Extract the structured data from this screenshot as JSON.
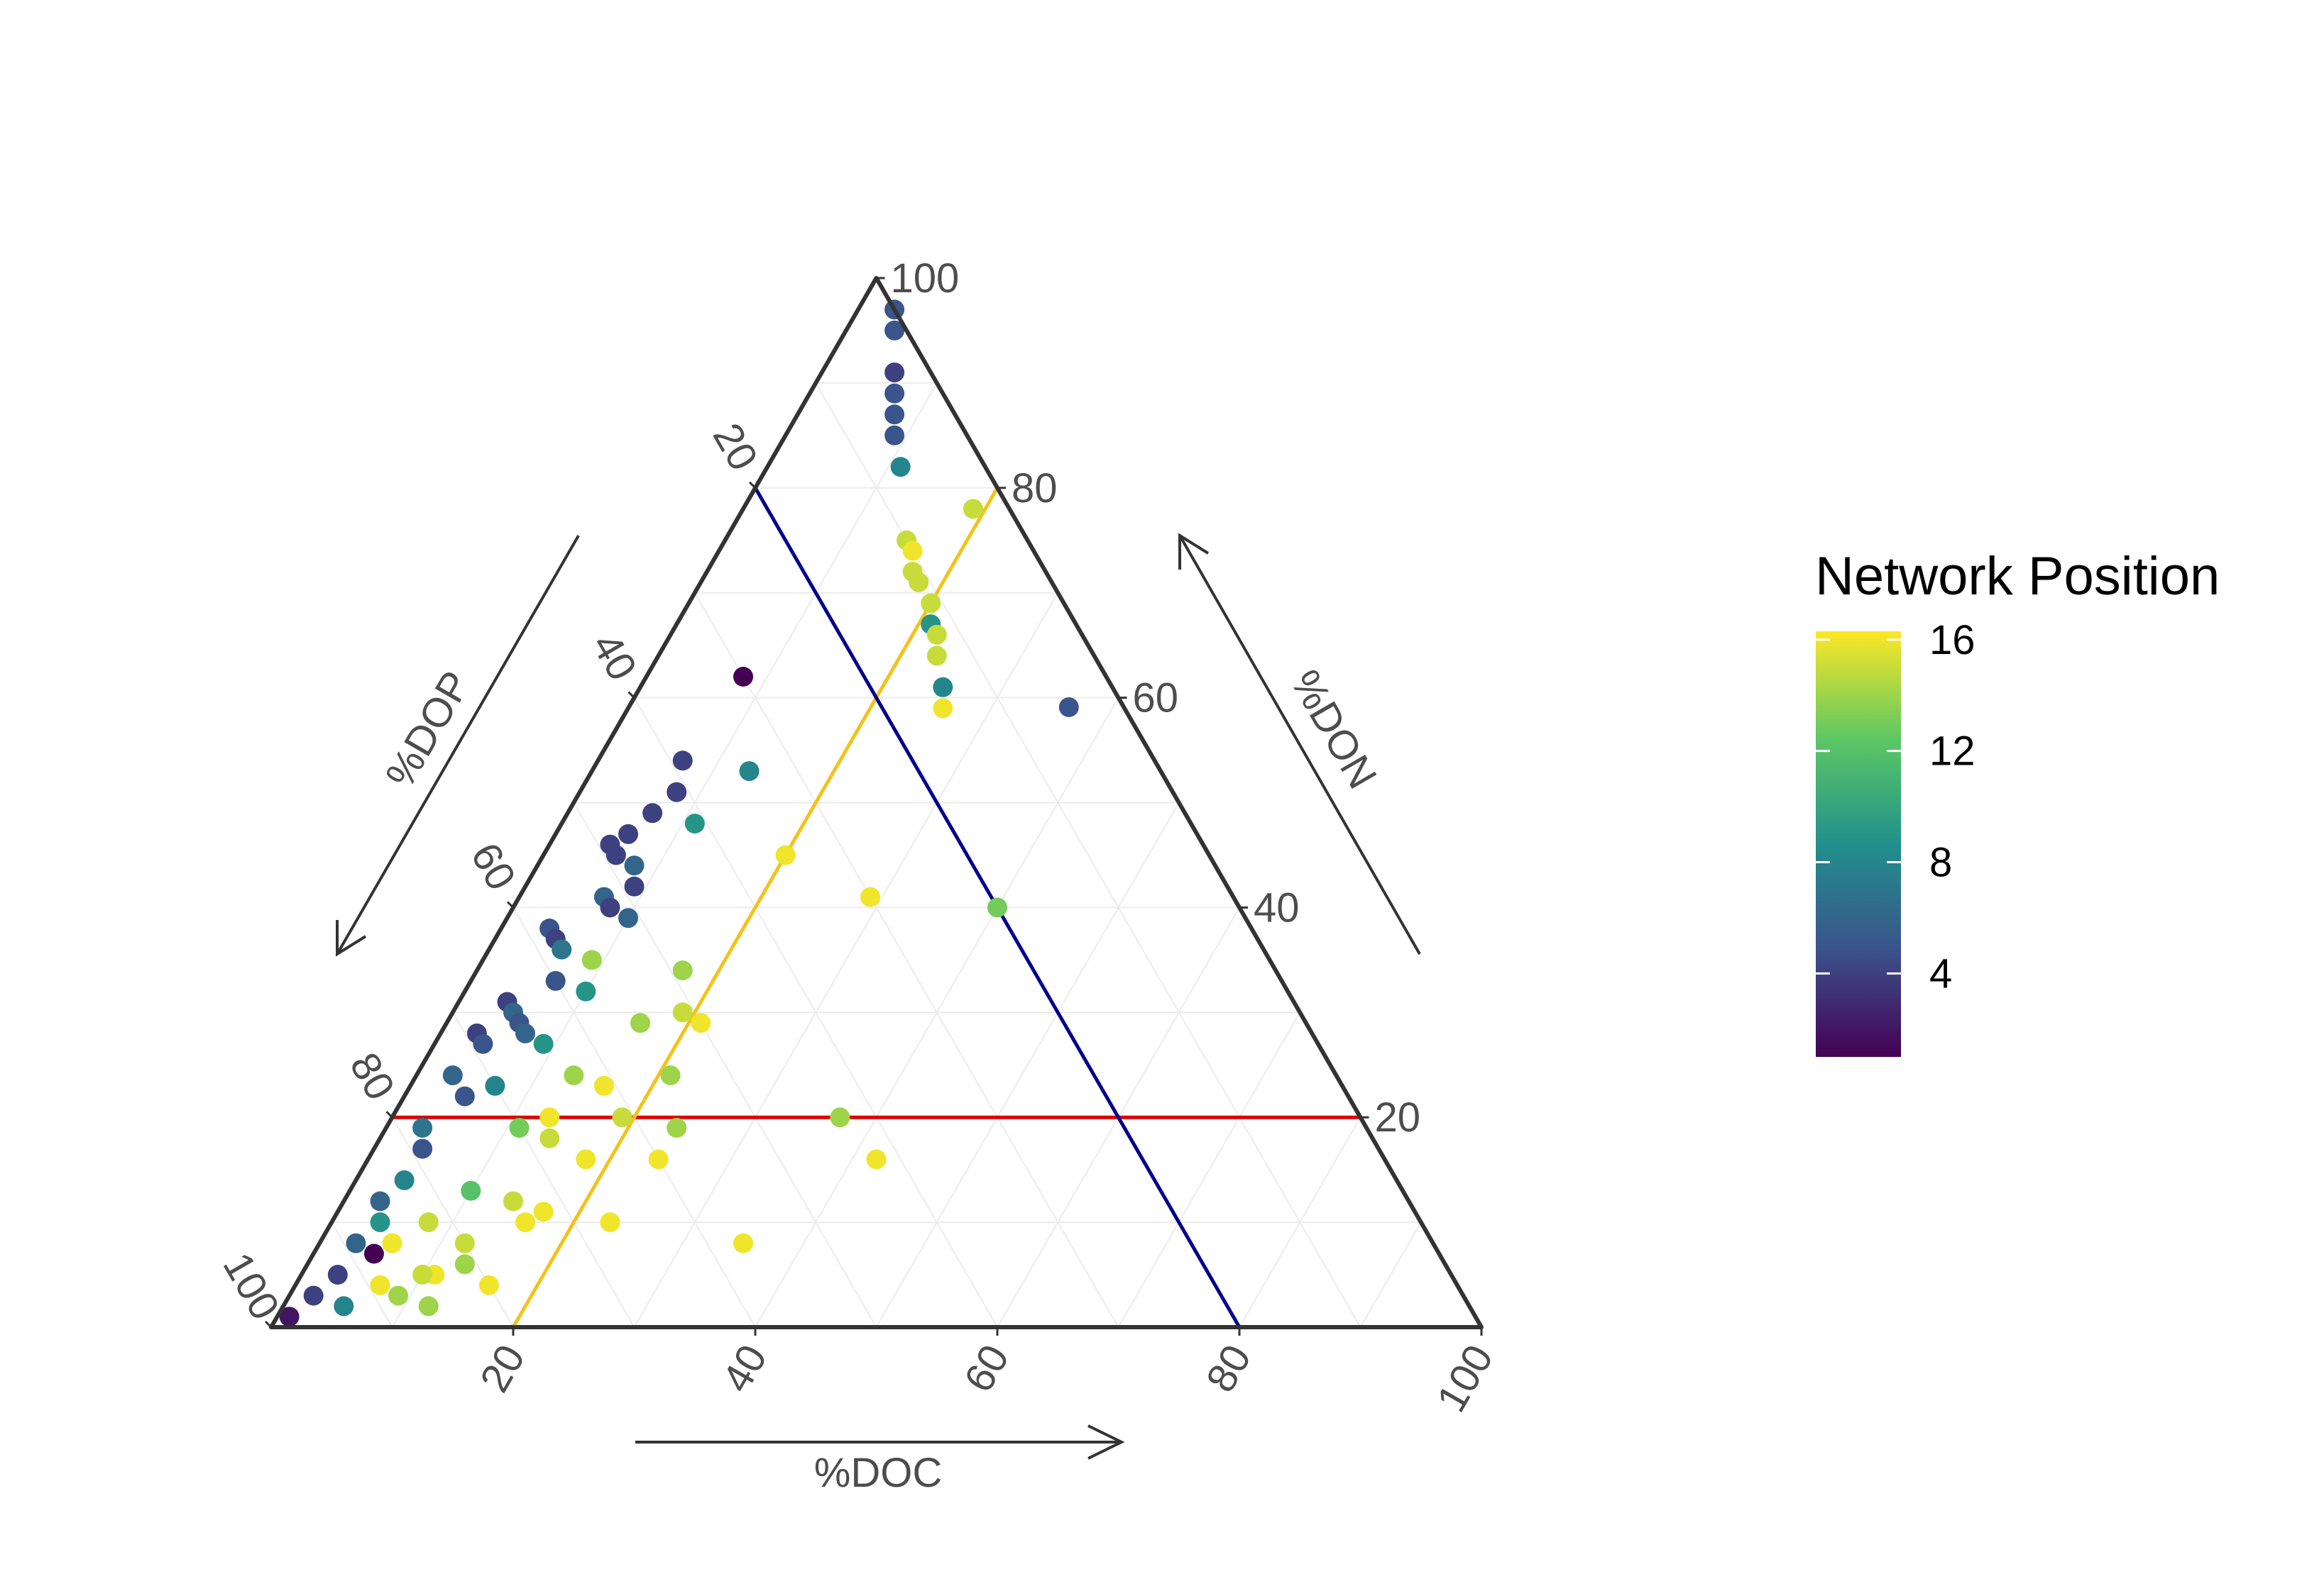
{
  "chart_data": {
    "type": "scatter",
    "subtype": "ternary",
    "axes": {
      "doc": {
        "label": "%DOC",
        "ticks": [
          "20",
          "40",
          "60",
          "80",
          "100"
        ]
      },
      "don": {
        "label": "%DON",
        "ticks": [
          "20",
          "40",
          "60",
          "80",
          "100"
        ]
      },
      "dop": {
        "label": "%DOP",
        "ticks": [
          "20",
          "40",
          "60",
          "80",
          "100"
        ]
      }
    },
    "grid": true,
    "reference_lines": [
      {
        "axis": "DON",
        "value": 20,
        "color": "#dd0000"
      },
      {
        "axis": "DOC",
        "value": 20,
        "color": "#f5c21b"
      },
      {
        "axis": "DOP",
        "value": 20,
        "color": "#00008b"
      }
    ],
    "colorbar": {
      "title": "Network Position",
      "ticks": [
        "4",
        "8",
        "12",
        "16"
      ],
      "tick_values": [
        4,
        8,
        12,
        16
      ],
      "range": [
        1,
        16.3
      ],
      "palette": [
        "#440154",
        "#3b528b",
        "#21908c",
        "#5dc863",
        "#fde725"
      ]
    },
    "legend_position": "right",
    "points": [
      [
        3,
        97,
        0,
        5
      ],
      [
        4,
        95,
        1,
        5
      ],
      [
        6,
        91,
        3,
        4
      ],
      [
        7,
        89,
        4,
        5
      ],
      [
        8,
        87,
        5,
        5
      ],
      [
        9,
        85,
        6,
        5
      ],
      [
        11,
        82,
        7,
        8
      ],
      [
        19,
        78,
        3,
        15
      ],
      [
        15,
        75,
        10,
        15
      ],
      [
        16,
        74,
        10,
        16
      ],
      [
        17,
        72,
        11,
        15
      ],
      [
        18,
        71,
        11,
        15
      ],
      [
        20,
        69,
        11,
        15
      ],
      [
        21,
        67,
        12,
        9
      ],
      [
        22,
        66,
        12,
        15
      ],
      [
        23,
        64,
        13,
        15
      ],
      [
        25,
        61,
        14,
        8
      ],
      [
        26,
        59,
        15,
        16
      ],
      [
        40,
        65,
        5,
        5
      ],
      [
        8,
        62,
        30,
        1
      ],
      [
        13,
        53,
        34,
        8
      ],
      [
        7,
        54,
        39,
        4
      ],
      [
        8,
        51,
        41,
        4
      ],
      [
        7,
        49,
        44,
        4
      ],
      [
        11,
        48,
        41,
        9
      ],
      [
        6,
        47,
        47,
        4
      ],
      [
        5,
        46,
        49,
        4
      ],
      [
        6,
        45,
        49,
        4
      ],
      [
        8,
        44,
        48,
        6
      ],
      [
        9,
        42,
        49,
        4
      ],
      [
        7,
        41,
        52,
        6
      ],
      [
        8,
        40,
        52,
        4
      ],
      [
        10,
        39,
        51,
        6
      ],
      [
        4,
        38,
        58,
        5
      ],
      [
        5,
        37,
        58,
        4
      ],
      [
        6,
        36,
        58,
        7
      ],
      [
        9,
        35,
        56,
        14
      ],
      [
        7,
        33,
        60,
        5
      ],
      [
        10,
        32,
        58,
        9
      ],
      [
        4,
        31,
        65,
        4
      ],
      [
        5,
        30,
        65,
        6
      ],
      [
        6,
        29,
        65,
        5
      ],
      [
        3,
        28,
        69,
        4
      ],
      [
        4,
        27,
        69,
        5
      ],
      [
        7,
        28,
        65,
        6
      ],
      [
        9,
        27,
        64,
        9
      ],
      [
        3,
        24,
        73,
        6
      ],
      [
        5,
        22,
        73,
        5
      ],
      [
        7,
        23,
        70,
        8
      ],
      [
        3,
        19,
        78,
        7
      ],
      [
        4,
        17,
        79,
        5
      ],
      [
        4,
        14,
        82,
        8
      ],
      [
        3,
        12,
        85,
        6
      ],
      [
        4,
        10,
        86,
        9
      ],
      [
        3,
        8,
        89,
        6
      ],
      [
        5,
        7,
        88,
        1
      ],
      [
        3,
        5,
        92,
        4
      ],
      [
        2,
        3,
        95,
        4
      ],
      [
        1,
        1,
        98,
        2
      ],
      [
        5,
        2,
        93,
        8
      ],
      [
        20,
        45,
        35,
        16
      ],
      [
        29,
        41,
        30,
        16
      ],
      [
        17,
        34,
        49,
        14
      ],
      [
        19,
        30,
        51,
        15
      ],
      [
        16,
        29,
        55,
        14
      ],
      [
        21,
        29,
        50,
        16
      ],
      [
        13,
        24,
        63,
        14
      ],
      [
        16,
        23,
        61,
        16
      ],
      [
        21,
        24,
        55,
        14
      ],
      [
        19,
        20,
        61,
        15
      ],
      [
        24,
        19,
        57,
        14
      ],
      [
        13,
        20,
        67,
        16
      ],
      [
        11,
        19,
        70,
        13
      ],
      [
        14,
        18,
        68,
        15
      ],
      [
        18,
        16,
        66,
        16
      ],
      [
        24,
        16,
        60,
        16
      ],
      [
        10,
        13,
        77,
        12
      ],
      [
        14,
        12,
        74,
        15
      ],
      [
        17,
        11,
        72,
        16
      ],
      [
        12,
        8,
        80,
        15
      ],
      [
        16,
        10,
        74,
        16
      ],
      [
        23,
        10,
        67,
        16
      ],
      [
        13,
        6,
        81,
        14
      ],
      [
        11,
        5,
        84,
        16
      ],
      [
        16,
        4,
        80,
        16
      ],
      [
        9,
        3,
        88,
        14
      ],
      [
        12,
        2,
        86,
        14
      ],
      [
        7,
        4,
        89,
        16
      ],
      [
        10,
        5,
        85,
        15
      ],
      [
        6,
        8,
        86,
        16
      ],
      [
        8,
        10,
        82,
        15
      ],
      [
        42,
        16,
        42,
        16
      ],
      [
        35,
        8,
        57,
        16
      ],
      [
        37,
        20,
        43,
        14
      ],
      [
        40,
        40,
        20,
        13
      ]
    ]
  }
}
